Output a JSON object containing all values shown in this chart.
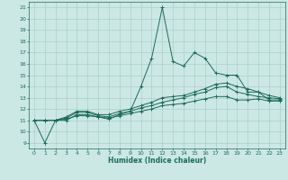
{
  "xlabel": "Humidex (Indice chaleur)",
  "ylabel": "",
  "background_color": "#cce8e4",
  "grid_color": "#aacfca",
  "line_color": "#1a6b5a",
  "xlim": [
    -0.5,
    23.5
  ],
  "ylim": [
    8.5,
    21.5
  ],
  "xticks": [
    0,
    1,
    2,
    3,
    4,
    5,
    6,
    7,
    8,
    9,
    10,
    11,
    12,
    13,
    14,
    15,
    16,
    17,
    18,
    19,
    20,
    21,
    22,
    23
  ],
  "yticks": [
    9,
    10,
    11,
    12,
    13,
    14,
    15,
    16,
    17,
    18,
    19,
    20,
    21
  ],
  "lines": [
    {
      "x": [
        0,
        1,
        2,
        3,
        4,
        5,
        6,
        7,
        8,
        9,
        10,
        11,
        12,
        13,
        14,
        15,
        16,
        17,
        18,
        19,
        20,
        21,
        22,
        23
      ],
      "y": [
        11,
        9,
        11,
        11,
        11.5,
        11.5,
        11.3,
        11.1,
        11.5,
        11.8,
        14,
        16.5,
        21,
        16.2,
        15.8,
        17,
        16.5,
        15.2,
        15,
        15,
        13.5,
        13.5,
        12.8,
        12.8
      ]
    },
    {
      "x": [
        0,
        1,
        2,
        3,
        4,
        5,
        6,
        7,
        8,
        9,
        10,
        11,
        12,
        13,
        14,
        15,
        16,
        17,
        18,
        19,
        20,
        21,
        22,
        23
      ],
      "y": [
        11,
        11,
        11,
        11.3,
        11.8,
        11.8,
        11.5,
        11.5,
        11.8,
        12.0,
        12.3,
        12.6,
        13.0,
        13.1,
        13.2,
        13.5,
        13.8,
        14.2,
        14.3,
        14.0,
        13.8,
        13.5,
        13.2,
        13.0
      ]
    },
    {
      "x": [
        0,
        1,
        2,
        3,
        4,
        5,
        6,
        7,
        8,
        9,
        10,
        11,
        12,
        13,
        14,
        15,
        16,
        17,
        18,
        19,
        20,
        21,
        22,
        23
      ],
      "y": [
        11,
        11,
        11,
        11.1,
        11.4,
        11.4,
        11.3,
        11.2,
        11.4,
        11.6,
        11.8,
        12.0,
        12.3,
        12.4,
        12.5,
        12.7,
        12.9,
        13.1,
        13.1,
        12.8,
        12.8,
        12.9,
        12.7,
        12.7
      ]
    },
    {
      "x": [
        0,
        1,
        2,
        3,
        4,
        5,
        6,
        7,
        8,
        9,
        10,
        11,
        12,
        13,
        14,
        15,
        16,
        17,
        18,
        19,
        20,
        21,
        22,
        23
      ],
      "y": [
        11,
        11,
        11,
        11.2,
        11.7,
        11.7,
        11.4,
        11.3,
        11.6,
        11.8,
        12.1,
        12.3,
        12.6,
        12.8,
        13.0,
        13.3,
        13.5,
        13.9,
        14.0,
        13.5,
        13.3,
        13.1,
        13.0,
        12.9
      ]
    }
  ]
}
